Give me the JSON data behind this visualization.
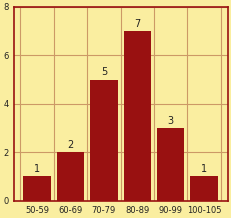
{
  "categories": [
    "50-59",
    "60-69",
    "70-79",
    "80-89",
    "90-99",
    "100-105"
  ],
  "values": [
    1,
    2,
    5,
    7,
    3,
    1
  ],
  "bar_color": "#991111",
  "background_color": "#faeea0",
  "grid_color": "#cc9966",
  "border_color": "#991111",
  "text_color": "#222222",
  "ylim": [
    0,
    8
  ],
  "yticks": [
    0,
    2,
    4,
    6,
    8
  ],
  "value_fontsize": 7.0,
  "tick_fontsize": 6.0,
  "bar_width": 0.82
}
